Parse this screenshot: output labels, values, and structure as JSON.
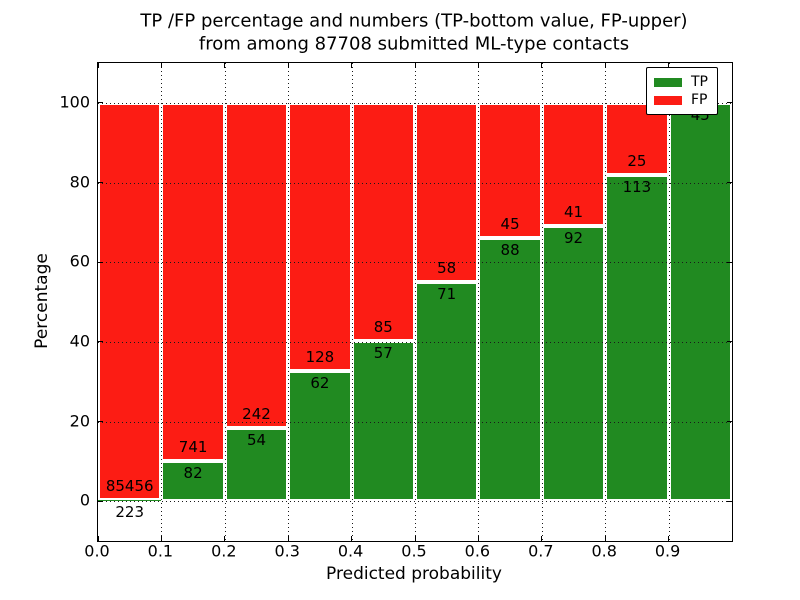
{
  "chart_data": {
    "type": "bar",
    "stacked": true,
    "normalized_to_percent": true,
    "title": "TP /FP percentage and numbers (TP-bottom value, FP-upper) from among 87708 submitted ML-type contacts",
    "title_line1": "TP /FP percentage and numbers (TP-bottom value, FP-upper)",
    "title_line2": "from among 87708 submitted ML-type contacts",
    "total_submitted_contacts": 87708,
    "xlabel": "Predicted probability",
    "ylabel": "Percentage",
    "xlim": [
      0.0,
      1.0
    ],
    "ylim": [
      -10,
      110
    ],
    "x_tick_labels": [
      "0.0",
      "0.1",
      "0.2",
      "0.3",
      "0.4",
      "0.5",
      "0.6",
      "0.7",
      "0.8",
      "0.9"
    ],
    "y_tick_values": [
      0,
      20,
      40,
      60,
      80,
      100
    ],
    "y_tick_labels": [
      "0",
      "20",
      "40",
      "60",
      "80",
      "100"
    ],
    "grid": "dotted-black-both-axes-on-top",
    "legend_position": "upper-right",
    "legend": [
      {
        "label": "TP",
        "color": "#218a21"
      },
      {
        "label": "FP",
        "color": "#fc1c14"
      }
    ],
    "colors": {
      "tp": "#218a21",
      "fp": "#fc1c14",
      "bar_edge": "#ffffff",
      "text": "#000000"
    },
    "bins": [
      {
        "x_start": 0.0,
        "x_end": 0.1,
        "tp": 223,
        "fp": 85456
      },
      {
        "x_start": 0.1,
        "x_end": 0.2,
        "tp": 82,
        "fp": 741
      },
      {
        "x_start": 0.2,
        "x_end": 0.3,
        "tp": 54,
        "fp": 242
      },
      {
        "x_start": 0.3,
        "x_end": 0.4,
        "tp": 62,
        "fp": 128
      },
      {
        "x_start": 0.4,
        "x_end": 0.5,
        "tp": 57,
        "fp": 85
      },
      {
        "x_start": 0.5,
        "x_end": 0.6,
        "tp": 71,
        "fp": 58
      },
      {
        "x_start": 0.6,
        "x_end": 0.7,
        "tp": 88,
        "fp": 45
      },
      {
        "x_start": 0.7,
        "x_end": 0.8,
        "tp": 92,
        "fp": 41
      },
      {
        "x_start": 0.8,
        "x_end": 0.9,
        "tp": 113,
        "fp": 25
      },
      {
        "x_start": 0.9,
        "x_end": 1.0,
        "tp": 45,
        "fp": 0
      }
    ]
  }
}
